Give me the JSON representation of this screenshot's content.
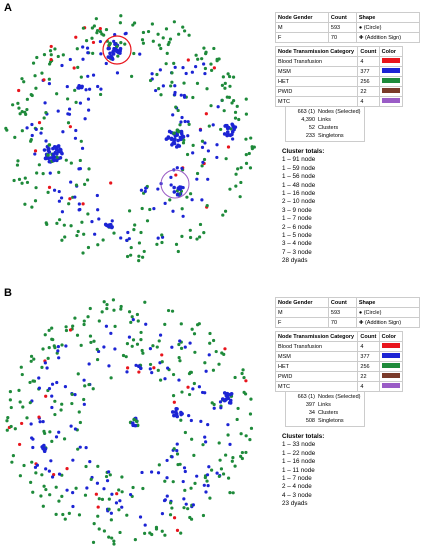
{
  "panels": [
    {
      "label": "A",
      "gender_table": {
        "headers": [
          "Node Gender",
          "Count",
          "Shape"
        ],
        "rows": [
          [
            "M",
            593,
            "(Circle)"
          ],
          [
            "F",
            70,
            "(Addition Sign)"
          ]
        ]
      },
      "category_table": {
        "headers": [
          "Node Transmission Category",
          "Count",
          "Color"
        ],
        "rows": [
          {
            "name": "Blood Transfusion",
            "count": 4,
            "color": "#e8141c"
          },
          {
            "name": "MSM",
            "count": 377,
            "color": "#1c24d4"
          },
          {
            "name": "HET",
            "count": 256,
            "color": "#1e8a3a"
          },
          {
            "name": "PWID",
            "count": 22,
            "color": "#7a3a2a"
          },
          {
            "name": "MTC",
            "count": 4,
            "color": "#9a5cc6"
          }
        ]
      },
      "stats": [
        [
          "663 (1)",
          "Nodes (Selected)"
        ],
        [
          "4,390",
          "Links"
        ],
        [
          "52",
          "Clusters"
        ],
        [
          "233",
          "Singletons"
        ]
      ],
      "cluster_title": "Cluster totals:",
      "clusters": [
        "1 – 91 node",
        "1 – 59 node",
        "1 – 56 node",
        "1 – 48 node",
        "1 – 16 node",
        "2 – 10 node",
        "3 – 9 node",
        "1 – 7 node",
        "2 – 6 node",
        "1 – 5 node",
        "3 – 4 node",
        "7 – 3 node",
        "28 dyads"
      ]
    },
    {
      "label": "B",
      "gender_table": {
        "headers": [
          "Node Gender",
          "Count",
          "Shape"
        ],
        "rows": [
          [
            "M",
            593,
            "(Circle)"
          ],
          [
            "F",
            70,
            "(Addition Sign)"
          ]
        ]
      },
      "category_table": {
        "headers": [
          "Node Transmission Category",
          "Count",
          "Color"
        ],
        "rows": [
          {
            "name": "Blood Transfusion",
            "count": 4,
            "color": "#e8141c"
          },
          {
            "name": "MSM",
            "count": 377,
            "color": "#1c24d4"
          },
          {
            "name": "HET",
            "count": 256,
            "color": "#1e8a3a"
          },
          {
            "name": "PWID",
            "count": 22,
            "color": "#7a3a2a"
          },
          {
            "name": "MTC",
            "count": 4,
            "color": "#9a5cc6"
          }
        ]
      },
      "stats": [
        [
          "663 (1)",
          "Nodes (Selected)"
        ],
        [
          "397",
          "Links"
        ],
        [
          "34",
          "Clusters"
        ],
        [
          "508",
          "Singletons"
        ]
      ],
      "cluster_title": "Cluster totals:",
      "clusters": [
        "1 – 33 node",
        "1 – 22 node",
        "1 – 16 node",
        "1 – 11 node",
        "1 – 7 node",
        "2 – 4 node",
        "4 – 3 node",
        "23 dyads"
      ]
    }
  ]
}
